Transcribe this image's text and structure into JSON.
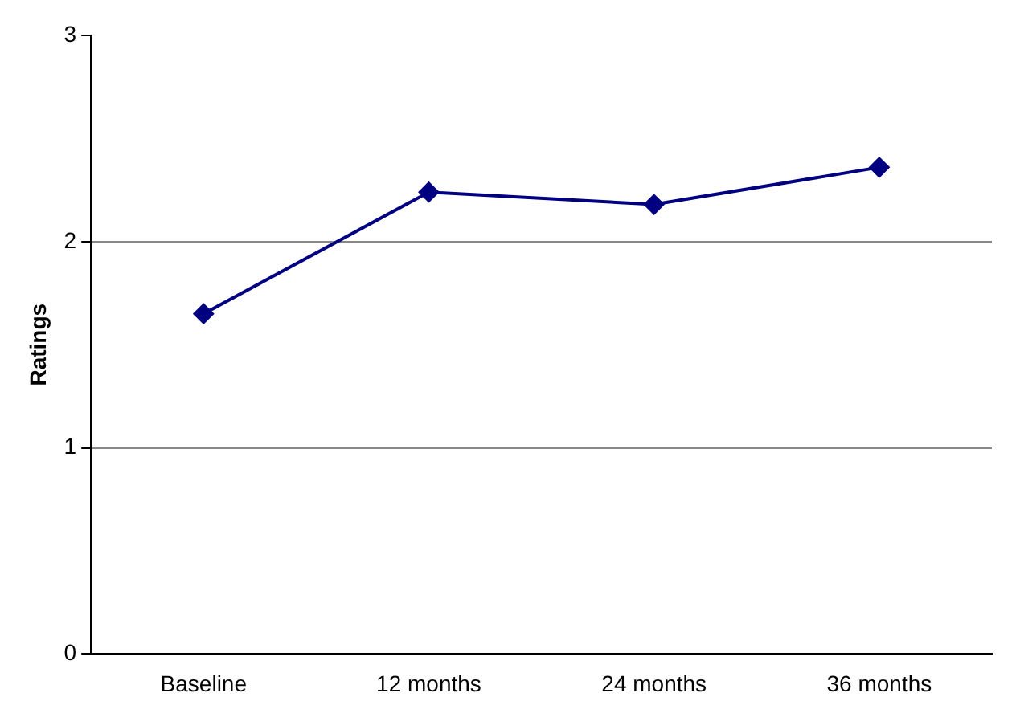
{
  "chart_data": {
    "type": "line",
    "ylabel": "Ratings",
    "categories": [
      "Baseline",
      "12 months",
      "24 months",
      "36 months"
    ],
    "series": [
      {
        "color": "#000080",
        "values": [
          1.65,
          2.24,
          2.18,
          2.36
        ]
      }
    ],
    "ylim": [
      0,
      3
    ],
    "yticks": [
      0,
      1,
      2,
      3
    ],
    "grid": "y",
    "marker": "diamond",
    "line_style": "solid",
    "legend": false
  }
}
